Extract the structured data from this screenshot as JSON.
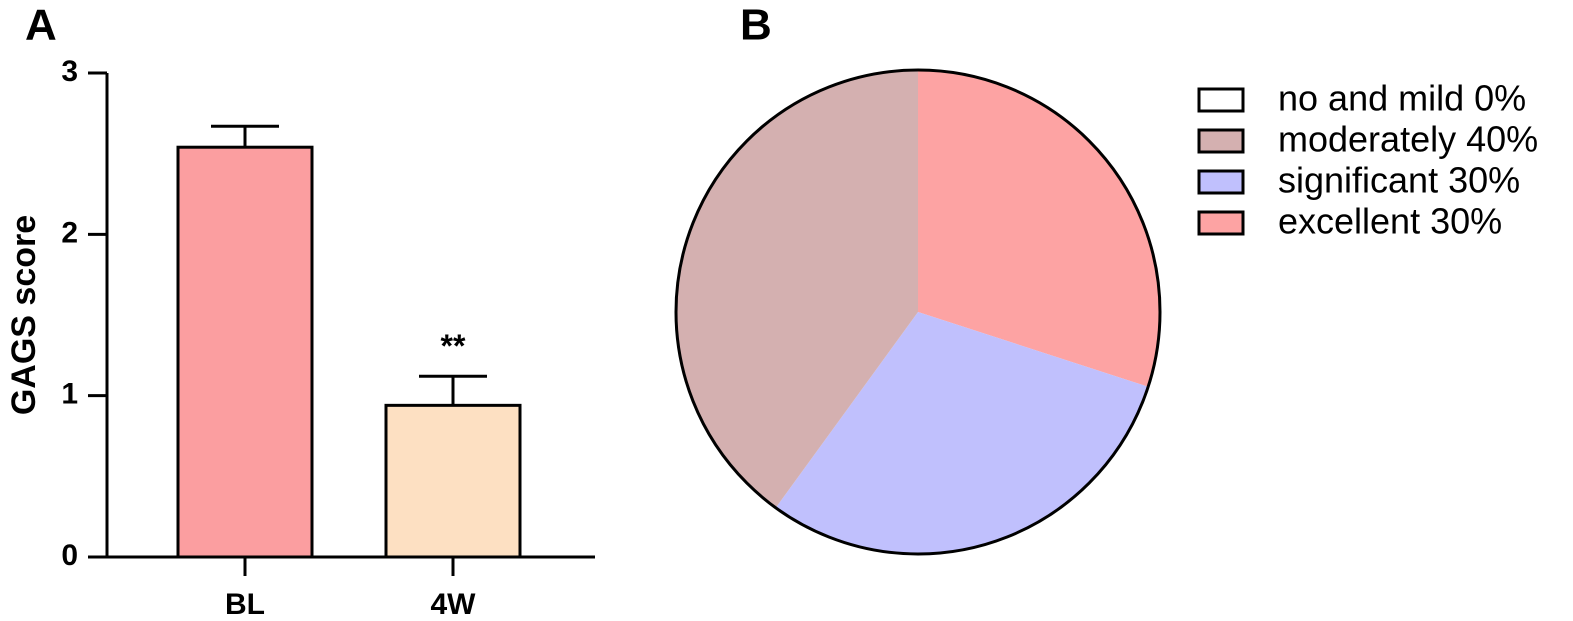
{
  "chart_data": [
    {
      "type": "bar",
      "title": "A",
      "ylabel": "GAGS score",
      "categories": [
        "BL",
        "4W"
      ],
      "values": [
        2.54,
        0.94
      ],
      "errors": [
        0.13,
        0.18
      ],
      "colors": [
        "#fb9ea0",
        "#fde0c2"
      ],
      "ylim": [
        0,
        3
      ],
      "yticks": [
        0,
        1,
        2,
        3
      ],
      "annotations": [
        {
          "text": "**",
          "x": "4W"
        }
      ]
    },
    {
      "type": "pie",
      "title": "B",
      "categories": [
        "no and mild 0%",
        "moderately 40%",
        "significant 30%",
        "excellent 30%"
      ],
      "values": [
        0,
        40,
        30,
        30
      ],
      "colors": [
        "#ffffff",
        "#d4b0b0",
        "#c0c0fd",
        "#fda3a3"
      ],
      "legend": "right"
    }
  ]
}
